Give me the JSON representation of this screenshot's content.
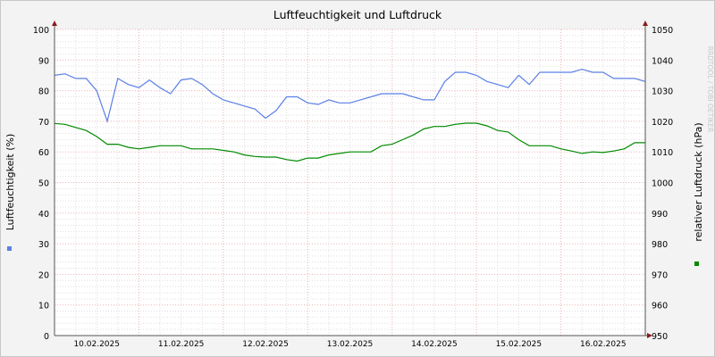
{
  "chart_data": {
    "type": "line",
    "title": "Luftfeuchtigkeit und Luftdruck",
    "ylabel_left": "Luftfeuchtigkeit (%)",
    "ylabel_right": "relativer Luftdruck (hPa)",
    "watermark": "RRDTOOL / TOBI OETIKER",
    "ylim_left": [
      0,
      100
    ],
    "ylim_right": [
      950,
      1050
    ],
    "yticks_left": [
      "0",
      "10",
      "20",
      "30",
      "40",
      "50",
      "60",
      "70",
      "80",
      "90",
      "100"
    ],
    "yticks_right": [
      "950",
      "960",
      "970",
      "980",
      "990",
      "1000",
      "1010",
      "1020",
      "1030",
      "1040",
      "1050"
    ],
    "xlim": [
      "10.02.2025 00:00",
      "17.02.2025 00:00"
    ],
    "xtick_labels": [
      "10.02.2025",
      "11.02.2025",
      "12.02.2025",
      "13.02.2025",
      "14.02.2025",
      "15.02.2025",
      "16.02.2025"
    ],
    "grid": true,
    "x_step_hours": 3,
    "series": [
      {
        "axis": "left",
        "color": "#5b7fe6",
        "values": [
          85,
          85.5,
          84,
          84,
          80,
          70,
          84,
          82,
          81,
          83.5,
          81,
          79,
          83.5,
          84,
          82,
          79,
          77,
          76,
          75,
          74,
          71,
          73.5,
          78,
          78,
          76,
          75.5,
          77,
          76,
          76,
          77,
          78,
          79,
          79,
          79,
          78,
          77,
          77,
          83,
          86,
          86,
          85,
          83,
          82,
          81,
          85,
          82,
          86,
          86,
          86,
          86,
          87,
          86,
          86,
          84,
          84,
          84,
          83
        ]
      },
      {
        "axis": "right",
        "color": "#008a00",
        "values": [
          1019.3,
          1019,
          1018,
          1017,
          1015,
          1012.5,
          1012.5,
          1011.5,
          1011,
          1011.5,
          1012,
          1012,
          1012,
          1011,
          1011,
          1011,
          1010.5,
          1010,
          1009,
          1008.5,
          1008.3,
          1008.3,
          1007.5,
          1007,
          1008,
          1008,
          1009,
          1009.5,
          1010,
          1010,
          1010,
          1012,
          1012.5,
          1014,
          1015.5,
          1017.5,
          1018.3,
          1018.3,
          1019,
          1019.4,
          1019.4,
          1018.5,
          1017,
          1016.5,
          1014,
          1012,
          1012,
          1012,
          1011,
          1010.3,
          1009.5,
          1010,
          1009.8,
          1010.3,
          1011,
          1013,
          1013
        ]
      }
    ]
  }
}
